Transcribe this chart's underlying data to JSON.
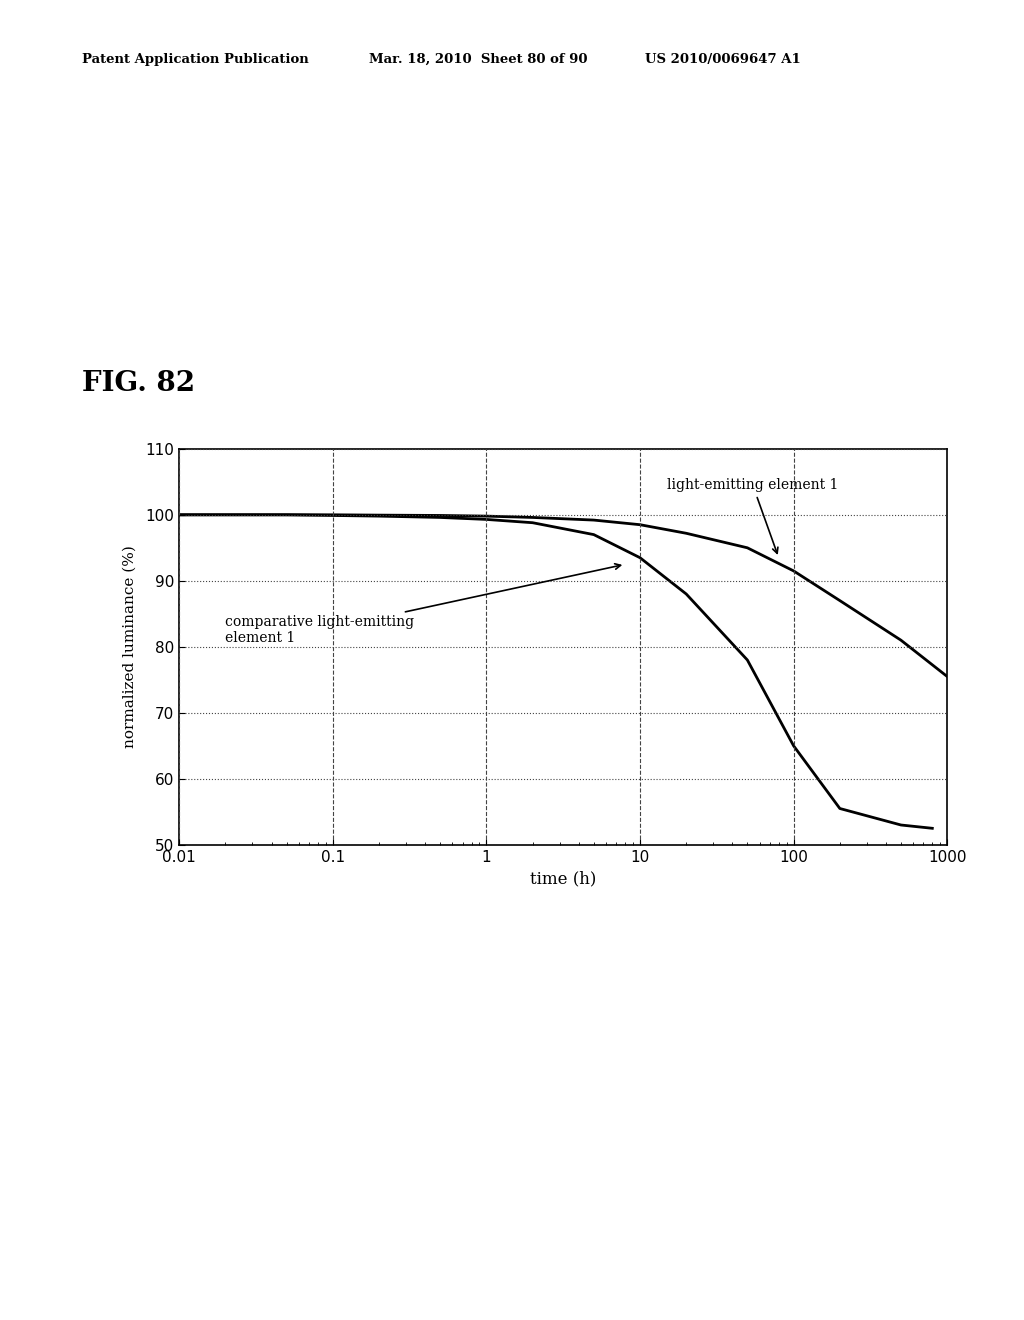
{
  "title": "FIG. 82",
  "xlabel": "time (h)",
  "ylabel": "normalized luminance (%)",
  "xlim": [
    0.01,
    1000
  ],
  "ylim": [
    50,
    110
  ],
  "yticks": [
    50,
    60,
    70,
    80,
    90,
    100,
    110
  ],
  "background_color": "#ffffff",
  "line_color": "#000000",
  "header_left": "Patent Application Publication",
  "header_mid": "Mar. 18, 2010  Sheet 80 of 90",
  "header_right": "US 2010/0069647 A1",
  "label1": "light-emitting element 1",
  "label2": "comparative light-emitting\nelement 1",
  "curve1_x": [
    0.01,
    0.02,
    0.05,
    0.1,
    0.2,
    0.5,
    1.0,
    2.0,
    5.0,
    10.0,
    20.0,
    50.0,
    100.0,
    200.0,
    500.0,
    1000.0
  ],
  "curve1_y": [
    100.0,
    100.0,
    100.0,
    100.0,
    99.95,
    99.9,
    99.8,
    99.6,
    99.2,
    98.5,
    97.2,
    95.0,
    91.5,
    87.0,
    81.0,
    75.5
  ],
  "curve2_x": [
    0.01,
    0.02,
    0.05,
    0.1,
    0.2,
    0.5,
    1.0,
    2.0,
    5.0,
    10.0,
    20.0,
    50.0,
    100.0,
    200.0,
    500.0,
    800.0
  ],
  "curve2_y": [
    100.0,
    100.0,
    100.0,
    99.9,
    99.8,
    99.6,
    99.3,
    98.8,
    97.0,
    93.5,
    88.0,
    78.0,
    65.0,
    55.5,
    53.0,
    52.5
  ]
}
